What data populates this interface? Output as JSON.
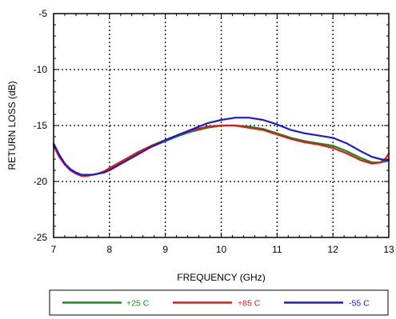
{
  "chart_data": {
    "type": "line",
    "xlabel": "FREQUENCY (GHz)",
    "ylabel": "RETURN LOSS (dB)",
    "xlim": [
      7,
      13
    ],
    "ylim": [
      -25,
      -5
    ],
    "xticks": [
      "7",
      "8",
      "9",
      "10",
      "11",
      "12",
      "13"
    ],
    "yticks": [
      "-5",
      "-10",
      "-15",
      "-20",
      "-25"
    ],
    "xtick_values": [
      7,
      8,
      9,
      10,
      11,
      12,
      13
    ],
    "ytick_values": [
      -5,
      -10,
      -15,
      -20,
      -25
    ],
    "grid": true,
    "grid_style": "dotted",
    "legend_position": "bottom",
    "series": [
      {
        "name": "+25 C",
        "color": "#1a8a1a",
        "x": [
          7.0,
          7.1,
          7.2,
          7.3,
          7.4,
          7.5,
          7.6,
          7.7,
          7.8,
          7.9,
          8.0,
          8.25,
          8.5,
          8.75,
          9.0,
          9.25,
          9.5,
          9.75,
          10.0,
          10.25,
          10.5,
          10.75,
          11.0,
          11.25,
          11.5,
          11.75,
          12.0,
          12.25,
          12.5,
          12.7,
          12.85,
          12.95,
          13.0
        ],
        "y": [
          -16.7,
          -17.7,
          -18.4,
          -18.9,
          -19.2,
          -19.4,
          -19.4,
          -19.4,
          -19.3,
          -19.1,
          -18.9,
          -18.2,
          -17.5,
          -16.9,
          -16.4,
          -15.9,
          -15.5,
          -15.2,
          -15.0,
          -15.0,
          -15.1,
          -15.3,
          -15.7,
          -16.1,
          -16.4,
          -16.6,
          -16.8,
          -17.3,
          -17.9,
          -18.3,
          -18.3,
          -18.2,
          -18.1
        ]
      },
      {
        "name": "+85 C",
        "color": "#dd1a1a",
        "x": [
          7.0,
          7.1,
          7.2,
          7.3,
          7.4,
          7.5,
          7.6,
          7.7,
          7.8,
          7.9,
          8.0,
          8.25,
          8.5,
          8.75,
          9.0,
          9.25,
          9.5,
          9.75,
          10.0,
          10.25,
          10.5,
          10.75,
          11.0,
          11.25,
          11.5,
          11.75,
          12.0,
          12.25,
          12.5,
          12.7,
          12.85,
          12.95,
          13.0
        ],
        "y": [
          -16.8,
          -17.8,
          -18.5,
          -19.0,
          -19.3,
          -19.5,
          -19.5,
          -19.4,
          -19.3,
          -19.1,
          -18.8,
          -18.1,
          -17.4,
          -16.8,
          -16.3,
          -15.8,
          -15.4,
          -15.1,
          -15.0,
          -15.0,
          -15.2,
          -15.4,
          -15.8,
          -16.2,
          -16.5,
          -16.7,
          -17.0,
          -17.5,
          -18.1,
          -18.4,
          -18.3,
          -17.9,
          -17.5
        ]
      },
      {
        "name": "-55 C",
        "color": "#1a1ad2",
        "x": [
          7.0,
          7.1,
          7.2,
          7.3,
          7.4,
          7.5,
          7.6,
          7.7,
          7.8,
          7.9,
          8.0,
          8.25,
          8.5,
          8.75,
          9.0,
          9.25,
          9.5,
          9.75,
          10.0,
          10.25,
          10.5,
          10.75,
          11.0,
          11.25,
          11.5,
          11.75,
          12.0,
          12.25,
          12.5,
          12.7,
          12.85,
          12.95,
          13.0
        ],
        "y": [
          -16.6,
          -17.6,
          -18.4,
          -18.9,
          -19.2,
          -19.4,
          -19.4,
          -19.4,
          -19.3,
          -19.2,
          -19.0,
          -18.3,
          -17.6,
          -16.9,
          -16.3,
          -15.8,
          -15.3,
          -14.8,
          -14.5,
          -14.3,
          -14.3,
          -14.5,
          -14.9,
          -15.4,
          -15.7,
          -15.9,
          -16.1,
          -16.6,
          -17.3,
          -17.8,
          -18.0,
          -18.1,
          -18.1
        ]
      }
    ]
  }
}
